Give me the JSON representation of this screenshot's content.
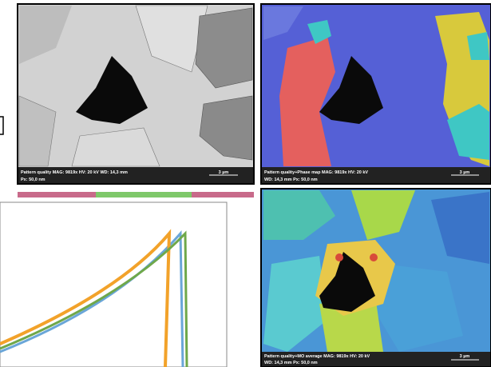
{
  "panels": [
    {
      "caption_line1": "Pattern quality   MAG: 9819x   HV: 20 kV   WD: 14,3 mm",
      "caption_line2": "Px: 50,0 nm",
      "scale_bar": "3 µm"
    },
    {
      "caption_line1": "Pattern quality+Phase map   MAG: 9819x   HV: 20 kV",
      "caption_line2": "WD: 14,3 mm   Px: 50,0 nm",
      "scale_bar": "3 µm"
    },
    {
      "caption_line1": "Pattern quality+MO average   MAG: 9819x   HV: 20 kV",
      "caption_line2": "WD: 14,3 mm   Px: 50,0 nm",
      "scale_bar": "3 µm"
    }
  ]
}
